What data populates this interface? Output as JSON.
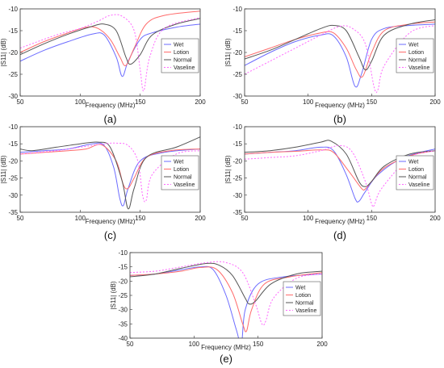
{
  "legend_names": [
    "Wet",
    "Lotion",
    "Normal",
    "Vaseline"
  ],
  "colors": {
    "Wet": "#6b6bff",
    "Lotion": "#ff6b6b",
    "Normal": "#555555",
    "Vaseline": "#ff66ff"
  },
  "chart_data": [
    {
      "type": "line",
      "panel_label": "(a)",
      "xlabel": "Frequency (MHz)",
      "ylabel": "|S11| (dB)",
      "xlim": [
        50,
        200
      ],
      "ylim": [
        -30,
        -10
      ],
      "xticks": [
        50,
        100,
        150,
        200
      ],
      "yticks": [
        -10,
        -15,
        -20,
        -25,
        -30
      ],
      "legend_placement": "right",
      "grid": false,
      "series": [
        {
          "name": "Wet",
          "x": [
            50,
            70,
            90,
            110,
            120,
            130,
            135,
            140,
            150,
            160,
            180,
            200
          ],
          "y": [
            -22,
            -19.5,
            -17.5,
            -15.8,
            -16,
            -21,
            -25.5,
            -22,
            -17,
            -15.5,
            -14.2,
            -13.5
          ]
        },
        {
          "name": "Lotion",
          "x": [
            50,
            70,
            90,
            105,
            115,
            125,
            133,
            138,
            145,
            155,
            170,
            200
          ],
          "y": [
            -20,
            -17.5,
            -15.5,
            -14.2,
            -14.5,
            -17,
            -21,
            -23,
            -19,
            -13.5,
            -11.5,
            -10.5
          ]
        },
        {
          "name": "Normal",
          "x": [
            50,
            70,
            90,
            110,
            120,
            130,
            138,
            142,
            150,
            160,
            180,
            200
          ],
          "y": [
            -20.5,
            -18,
            -15.8,
            -14,
            -13.5,
            -15,
            -21,
            -22.7,
            -20.5,
            -16,
            -13.5,
            -12.2
          ]
        },
        {
          "name": "Vaseline",
          "x": [
            50,
            80,
            100,
            115,
            125,
            135,
            145,
            150,
            153,
            158,
            170,
            200
          ],
          "y": [
            -19,
            -16,
            -14.5,
            -12.8,
            -11.5,
            -11.7,
            -15,
            -24,
            -28.8,
            -21,
            -14.5,
            -12
          ]
        }
      ]
    },
    {
      "type": "line",
      "panel_label": "(b)",
      "xlabel": "Frequency (MHz)",
      "ylabel": "|S11| (dB)",
      "xlim": [
        50,
        200
      ],
      "ylim": [
        -30,
        -10
      ],
      "xticks": [
        50,
        100,
        150,
        200
      ],
      "yticks": [
        -10,
        -15,
        -20,
        -25,
        -30
      ],
      "legend_placement": "right",
      "grid": false,
      "series": [
        {
          "name": "Wet",
          "x": [
            50,
            70,
            90,
            110,
            120,
            130,
            137,
            142,
            150,
            160,
            180,
            200
          ],
          "y": [
            -23,
            -20,
            -17.5,
            -16,
            -16.2,
            -21,
            -27.8,
            -25,
            -17,
            -14.5,
            -13.8,
            -13.5
          ]
        },
        {
          "name": "Lotion",
          "x": [
            50,
            70,
            90,
            110,
            120,
            130,
            138,
            143,
            150,
            160,
            180,
            200
          ],
          "y": [
            -21,
            -19,
            -17,
            -15.5,
            -15.5,
            -19,
            -24,
            -25.5,
            -20,
            -15,
            -13.5,
            -13
          ]
        },
        {
          "name": "Normal",
          "x": [
            50,
            70,
            90,
            110,
            120,
            130,
            140,
            145,
            150,
            160,
            180,
            200
          ],
          "y": [
            -21.5,
            -19.5,
            -17,
            -14.5,
            -13.8,
            -15,
            -21,
            -24,
            -22,
            -16,
            -13.5,
            -12.5
          ]
        },
        {
          "name": "Vaseline",
          "x": [
            50,
            70,
            90,
            110,
            125,
            135,
            145,
            152,
            155,
            160,
            180,
            200
          ],
          "y": [
            -25,
            -22,
            -19,
            -16,
            -14,
            -14.5,
            -18,
            -28,
            -28.5,
            -23,
            -15.5,
            -13.8
          ]
        }
      ]
    },
    {
      "type": "line",
      "panel_label": "(c)",
      "xlabel": "Frequency (MHz)",
      "ylabel": "|S11| (dB)",
      "xlim": [
        50,
        200
      ],
      "ylim": [
        -35,
        -10
      ],
      "xticks": [
        50,
        100,
        150,
        200
      ],
      "yticks": [
        -10,
        -15,
        -20,
        -25,
        -30,
        -35
      ],
      "legend_placement": "right",
      "grid": false,
      "series": [
        {
          "name": "Wet",
          "x": [
            50,
            70,
            90,
            110,
            120,
            128,
            133,
            136,
            140,
            150,
            170,
            200
          ],
          "y": [
            -17.5,
            -17,
            -16.5,
            -15,
            -15.5,
            -22,
            -31,
            -33,
            -28,
            -20,
            -17.5,
            -16.5
          ]
        },
        {
          "name": "Lotion",
          "x": [
            50,
            70,
            90,
            105,
            118,
            130,
            136,
            140,
            145,
            155,
            175,
            200
          ],
          "y": [
            -18,
            -17.5,
            -17,
            -16.5,
            -15.3,
            -20,
            -27,
            -28,
            -25,
            -19,
            -17,
            -16.5
          ]
        },
        {
          "name": "Normal",
          "x": [
            50,
            60,
            80,
            100,
            115,
            125,
            135,
            140,
            145,
            155,
            180,
            200
          ],
          "y": [
            -16.5,
            -17,
            -16,
            -15,
            -14.5,
            -16,
            -26,
            -34,
            -28,
            -19,
            -16,
            -13
          ]
        },
        {
          "name": "Vaseline",
          "x": [
            50,
            80,
            100,
            120,
            130,
            140,
            148,
            152,
            155,
            160,
            180,
            200
          ],
          "y": [
            -18,
            -17,
            -16,
            -15,
            -14.8,
            -15.5,
            -20,
            -30,
            -31.5,
            -24,
            -18,
            -17
          ]
        }
      ]
    },
    {
      "type": "line",
      "panel_label": "(d)",
      "xlabel": "Frequency (MHz)",
      "ylabel": "|S11| (dB)",
      "xlim": [
        50,
        200
      ],
      "ylim": [
        -35,
        -10
      ],
      "xticks": [
        50,
        100,
        150,
        200
      ],
      "yticks": [
        -10,
        -15,
        -20,
        -25,
        -30,
        -35
      ],
      "legend_placement": "right",
      "grid": false,
      "series": [
        {
          "name": "Wet",
          "x": [
            50,
            70,
            90,
            110,
            120,
            130,
            137,
            140,
            145,
            155,
            175,
            200
          ],
          "y": [
            -18,
            -17.5,
            -17,
            -16,
            -17,
            -24,
            -31,
            -31.8,
            -29,
            -24,
            -19,
            -16.5
          ]
        },
        {
          "name": "Lotion",
          "x": [
            50,
            70,
            90,
            110,
            120,
            132,
            142,
            145,
            150,
            160,
            180,
            200
          ],
          "y": [
            -18,
            -17.5,
            -17.2,
            -16.8,
            -17.5,
            -23,
            -28,
            -28.2,
            -26,
            -22,
            -18.5,
            -17
          ]
        },
        {
          "name": "Normal",
          "x": [
            50,
            70,
            90,
            110,
            118,
            130,
            140,
            145,
            150,
            160,
            180,
            200
          ],
          "y": [
            -17.5,
            -17,
            -16,
            -14.5,
            -14.2,
            -18,
            -26,
            -27.5,
            -26,
            -21.5,
            -18,
            -17
          ]
        },
        {
          "name": "Vaseline",
          "x": [
            50,
            70,
            90,
            110,
            125,
            135,
            145,
            150,
            152,
            158,
            180,
            200
          ],
          "y": [
            -19.5,
            -19,
            -18.5,
            -17,
            -15.5,
            -17.5,
            -26,
            -32.5,
            -33,
            -28,
            -19,
            -17
          ]
        }
      ]
    },
    {
      "type": "line",
      "panel_label": "(e)",
      "xlabel": "Frequency (MHz)",
      "ylabel": "|S11| (dB)",
      "xlim": [
        50,
        200
      ],
      "ylim": [
        -40,
        -10
      ],
      "xticks": [
        50,
        100,
        150,
        200
      ],
      "yticks": [
        -10,
        -15,
        -20,
        -25,
        -30,
        -35,
        -40
      ],
      "legend_placement": "right",
      "grid": false,
      "series": [
        {
          "name": "Wet",
          "x": [
            50,
            70,
            90,
            105,
            115,
            125,
            133,
            137,
            140,
            150,
            170,
            200
          ],
          "y": [
            -18,
            -17.5,
            -16,
            -15,
            -16,
            -25,
            -37,
            -42,
            -30,
            -21,
            -18.5,
            -17.5
          ]
        },
        {
          "name": "Lotion",
          "x": [
            50,
            70,
            90,
            105,
            118,
            130,
            138,
            141,
            145,
            155,
            175,
            200
          ],
          "y": [
            -18,
            -17.5,
            -16.5,
            -15.2,
            -16,
            -24,
            -35,
            -37.5,
            -30,
            -21,
            -18.5,
            -17
          ]
        },
        {
          "name": "Normal",
          "x": [
            50,
            70,
            90,
            110,
            120,
            130,
            140,
            143,
            148,
            160,
            180,
            200
          ],
          "y": [
            -18.5,
            -17.5,
            -15.5,
            -13.8,
            -14.5,
            -18,
            -26,
            -28,
            -27,
            -21,
            -17.5,
            -16.5
          ]
        },
        {
          "name": "Vaseline",
          "x": [
            50,
            70,
            90,
            110,
            125,
            138,
            148,
            153,
            156,
            162,
            180,
            200
          ],
          "y": [
            -17,
            -16.5,
            -15,
            -13.5,
            -13.5,
            -17,
            -28,
            -35,
            -34,
            -26,
            -19,
            -17.5
          ]
        }
      ]
    }
  ]
}
